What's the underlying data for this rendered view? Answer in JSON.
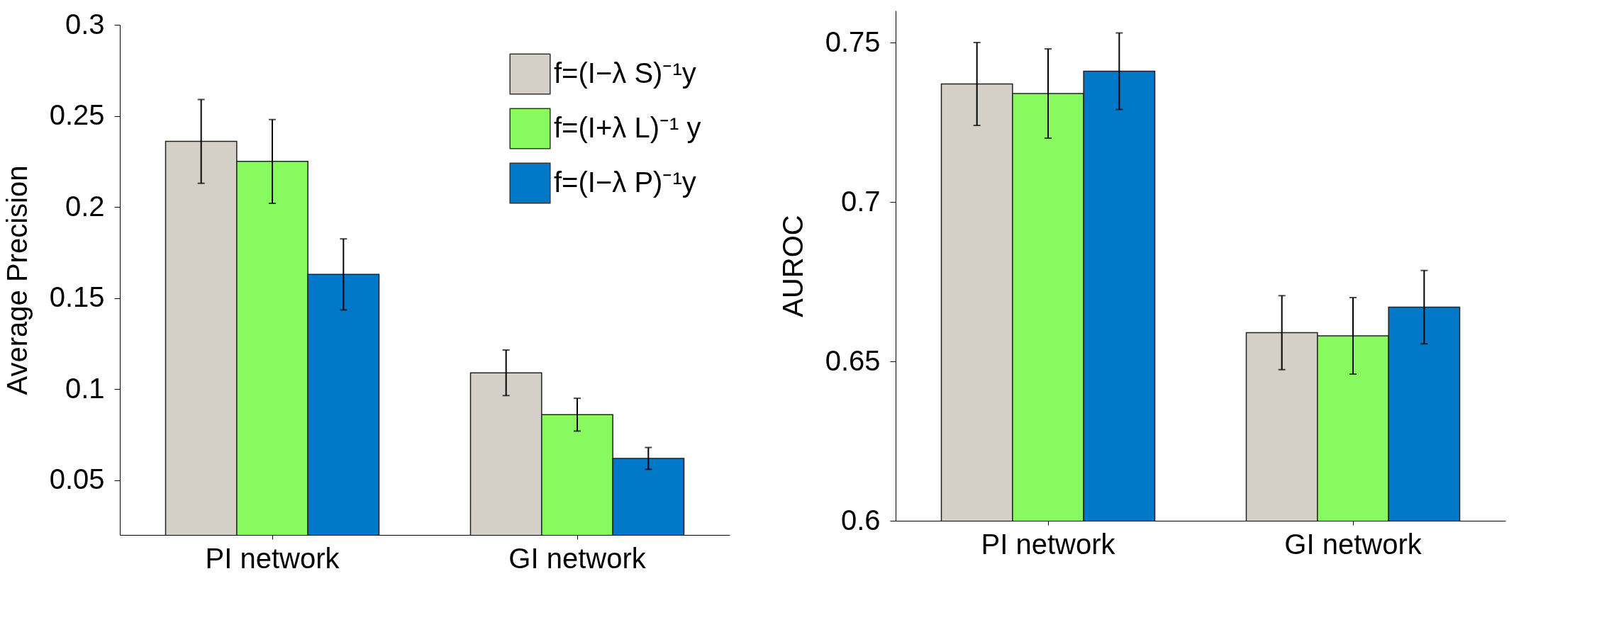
{
  "chart_data": [
    {
      "type": "bar",
      "ylabel": "Average Precision",
      "categories": [
        "PI network",
        "GI network"
      ],
      "ylim": [
        0.02,
        0.3
      ],
      "yticks": [
        0.05,
        0.1,
        0.15,
        0.2,
        0.25,
        0.3
      ],
      "grid": false,
      "legend": "top right",
      "series": [
        {
          "name": "f=(I−λ S)⁻¹y",
          "color": "#d4d0c8",
          "values": [
            0.236,
            0.109
          ],
          "errors": [
            0.023,
            0.0125
          ]
        },
        {
          "name": "f=(I+λ L)⁻¹ y",
          "color": "#88fa60",
          "values": [
            0.225,
            0.086
          ],
          "errors": [
            0.023,
            0.009
          ]
        },
        {
          "name": "f=(I−λ P)⁻¹y",
          "color": "#0078c8",
          "values": [
            0.163,
            0.062
          ],
          "errors": [
            0.0195,
            0.006
          ]
        }
      ]
    },
    {
      "type": "bar",
      "ylabel": "AUROC",
      "categories": [
        "PI network",
        "GI network"
      ],
      "ylim": [
        0.6,
        0.76
      ],
      "yticks": [
        0.6,
        0.65,
        0.7,
        0.75
      ],
      "grid": false,
      "series": [
        {
          "color": "#d4d0c8",
          "values": [
            0.737,
            0.659
          ],
          "errors": [
            0.013,
            0.0116
          ]
        },
        {
          "color": "#88fa60",
          "values": [
            0.734,
            0.658
          ],
          "errors": [
            0.014,
            0.012
          ]
        },
        {
          "color": "#0078c8",
          "values": [
            0.741,
            0.667
          ],
          "errors": [
            0.012,
            0.0115
          ]
        }
      ]
    }
  ]
}
